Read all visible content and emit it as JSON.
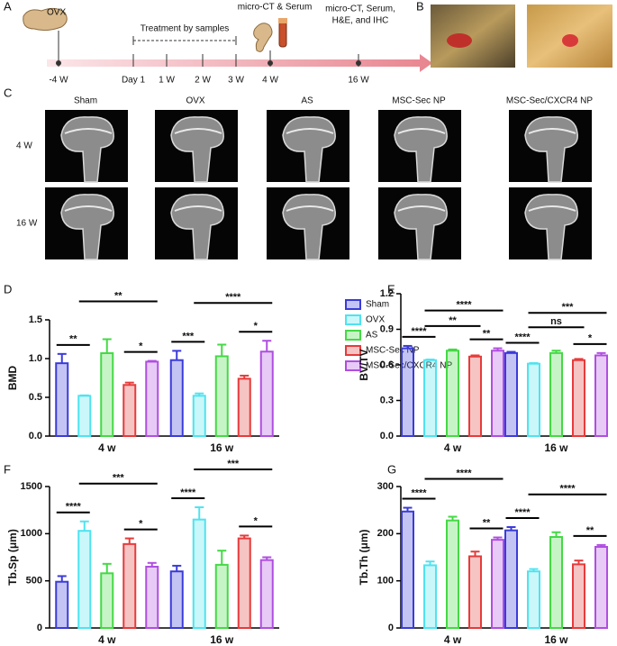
{
  "panel_labels": [
    "A",
    "B",
    "C",
    "D",
    "E",
    "F",
    "G"
  ],
  "timeline": {
    "ticks": [
      "-4 W",
      "Day 1",
      "1 W",
      "2 W",
      "3 W",
      "4 W",
      "16 W"
    ],
    "start_label": "OVX",
    "treatment_label": "Treatment by samples",
    "midpoint_label": "micro-CT & Serum",
    "end_label_lines": [
      "micro-CT, Serum,",
      "H&E, and IHC"
    ]
  },
  "ct_images": {
    "columns": [
      "Sham",
      "OVX",
      "AS",
      "MSC-Sec NP",
      "MSC-Sec/CXCR4 NP"
    ],
    "rows": [
      "4 W",
      "16 W"
    ]
  },
  "chart_data": [
    {
      "type": "bar",
      "y_label": "BMD",
      "categories": [
        "4 w",
        "16 w"
      ],
      "ylim": [
        0,
        1.5
      ],
      "yticks": [
        {
          "value": 0,
          "label": "0.0"
        },
        0.5,
        {
          "value": 1,
          "label": "1.0"
        },
        1.5
      ],
      "legend": true,
      "series": [
        {
          "name": "Sham",
          "color": "#3b3bd9",
          "values": [
            0.94,
            0.98
          ],
          "errors": [
            0.12,
            0.12
          ]
        },
        {
          "name": "OVX",
          "color": "#4fe3f0",
          "values": [
            0.52,
            0.52
          ],
          "errors": [
            0.005,
            0.03
          ]
        },
        {
          "name": "AS",
          "color": "#45d945",
          "values": [
            1.07,
            1.03
          ],
          "errors": [
            0.18,
            0.15
          ]
        },
        {
          "name": "MSC-Sec NP",
          "color": "#e63b3b",
          "values": [
            0.66,
            0.74
          ],
          "errors": [
            0.03,
            0.04
          ]
        },
        {
          "name": "MSC-Sec/CXCR4 NP",
          "color": "#b04ee0",
          "values": [
            0.96,
            1.09
          ],
          "errors": [
            0.01,
            0.14
          ]
        }
      ],
      "significance": [
        {
          "label": "**",
          "category": 0,
          "from": 0,
          "to": 1
        },
        {
          "label": "*",
          "category": 0,
          "from": 3,
          "to": 4
        },
        {
          "label": "**",
          "category": 0,
          "from": 1,
          "to": 4
        },
        {
          "label": "***",
          "category": 1,
          "from": 0,
          "to": 1
        },
        {
          "label": "*",
          "category": 1,
          "from": 3,
          "to": 4
        },
        {
          "label": "****",
          "category": 1,
          "from": 1,
          "to": 4
        }
      ]
    },
    {
      "type": "bar",
      "y_label": "BV/TV",
      "categories": [
        "4 w",
        "16 w"
      ],
      "ylim": [
        0,
        1.2
      ],
      "yticks": [
        {
          "value": 0,
          "label": "0.0"
        },
        0.3,
        0.6,
        0.9,
        1.2
      ],
      "legend": false,
      "series": [
        {
          "color": "#3b3bd9",
          "values": [
            0.74,
            0.7
          ],
          "errors": [
            0.02,
            0.01
          ]
        },
        {
          "color": "#4fe3f0",
          "values": [
            0.64,
            0.61
          ],
          "errors": [
            0.005,
            0.005
          ]
        },
        {
          "color": "#45d945",
          "values": [
            0.72,
            0.7
          ],
          "errors": [
            0.01,
            0.02
          ]
        },
        {
          "color": "#e63b3b",
          "values": [
            0.67,
            0.64
          ],
          "errors": [
            0.01,
            0.01
          ]
        },
        {
          "color": "#b04ee0",
          "values": [
            0.72,
            0.68
          ],
          "errors": [
            0.02,
            0.02
          ]
        }
      ],
      "significance": [
        {
          "label": "****",
          "category": 0,
          "from": 0,
          "to": 1
        },
        {
          "label": "**",
          "category": 0,
          "from": 3,
          "to": 4
        },
        {
          "label": "**",
          "category": 0,
          "from": 1,
          "to": 3
        },
        {
          "label": "****",
          "category": 0,
          "from": 1,
          "to": 4
        },
        {
          "label": "****",
          "category": 1,
          "from": 0,
          "to": 1
        },
        {
          "label": "*",
          "category": 1,
          "from": 3,
          "to": 4
        },
        {
          "label": "ns",
          "category": 1,
          "from": 1,
          "to": 3
        },
        {
          "label": "***",
          "category": 1,
          "from": 1,
          "to": 4
        }
      ]
    },
    {
      "type": "bar",
      "y_label": "Tb.Sp (μm)",
      "categories": [
        "4 w",
        "16 w"
      ],
      "ylim": [
        0,
        1500
      ],
      "yticks": [
        0,
        500,
        1000,
        1500
      ],
      "legend": false,
      "series": [
        {
          "color": "#3b3bd9",
          "values": [
            490,
            600
          ],
          "errors": [
            60,
            60
          ]
        },
        {
          "color": "#4fe3f0",
          "values": [
            1030,
            1150
          ],
          "errors": [
            100,
            130
          ]
        },
        {
          "color": "#45d945",
          "values": [
            580,
            670
          ],
          "errors": [
            100,
            150
          ]
        },
        {
          "color": "#e63b3b",
          "values": [
            890,
            950
          ],
          "errors": [
            60,
            30
          ]
        },
        {
          "color": "#b04ee0",
          "values": [
            650,
            720
          ],
          "errors": [
            40,
            30
          ]
        }
      ],
      "significance": [
        {
          "label": "****",
          "category": 0,
          "from": 0,
          "to": 1
        },
        {
          "label": "*",
          "category": 0,
          "from": 3,
          "to": 4
        },
        {
          "label": "***",
          "category": 0,
          "from": 1,
          "to": 4
        },
        {
          "label": "****",
          "category": 1,
          "from": 0,
          "to": 1
        },
        {
          "label": "*",
          "category": 1,
          "from": 3,
          "to": 4
        },
        {
          "label": "***",
          "category": 1,
          "from": 1,
          "to": 4
        }
      ]
    },
    {
      "type": "bar",
      "y_label": "Tb.Th (μm)",
      "categories": [
        "4 w",
        "16 w"
      ],
      "ylim": [
        0,
        300
      ],
      "yticks": [
        0,
        100,
        200,
        300
      ],
      "legend": false,
      "series": [
        {
          "color": "#3b3bd9",
          "values": [
            247,
            207
          ],
          "errors": [
            8,
            7
          ]
        },
        {
          "color": "#4fe3f0",
          "values": [
            133,
            120
          ],
          "errors": [
            8,
            5
          ]
        },
        {
          "color": "#45d945",
          "values": [
            228,
            193
          ],
          "errors": [
            8,
            10
          ]
        },
        {
          "color": "#e63b3b",
          "values": [
            152,
            135
          ],
          "errors": [
            10,
            8
          ]
        },
        {
          "color": "#b04ee0",
          "values": [
            187,
            172
          ],
          "errors": [
            5,
            4
          ]
        }
      ],
      "significance": [
        {
          "label": "****",
          "category": 0,
          "from": 0,
          "to": 1
        },
        {
          "label": "**",
          "category": 0,
          "from": 3,
          "to": 4
        },
        {
          "label": "****",
          "category": 0,
          "from": 1,
          "to": 4
        },
        {
          "label": "****",
          "category": 1,
          "from": 0,
          "to": 1
        },
        {
          "label": "**",
          "category": 1,
          "from": 3,
          "to": 4
        },
        {
          "label": "****",
          "category": 1,
          "from": 1,
          "to": 4
        }
      ]
    }
  ]
}
